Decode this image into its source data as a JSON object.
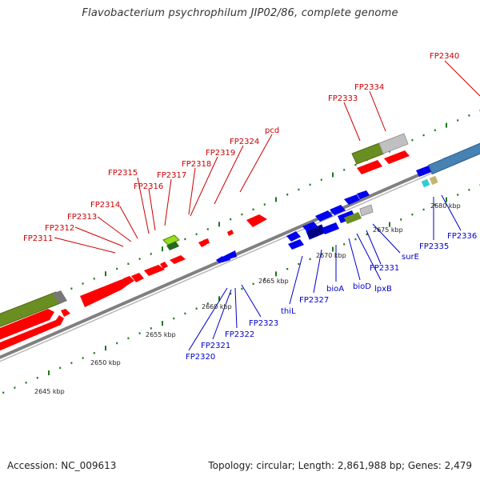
{
  "title": "Flavobacterium psychrophilum JIP02/86, complete genome",
  "footer": {
    "accession": "Accession: NC_009613",
    "summary": "Topology: circular; Length: 2,861,988 bp; Genes: 2,479"
  },
  "colors": {
    "forward_gene": "#ff0000",
    "reverse_gene": "#0000ee",
    "label_forward": "#cc0000",
    "label_reverse": "#0000cc",
    "backbone": "#808080",
    "tick": "#1a7a1a",
    "olive_feature": "#6b8e23",
    "grey_feature": "#c0c0c0",
    "steelblue_feature": "#4682b4",
    "lime_feature": "#99dd22"
  },
  "forward_labels": [
    "FP2311",
    "FP2312",
    "FP2313",
    "FP2314",
    "FP2315",
    "FP2316",
    "FP2317",
    "FP2318",
    "FP2319",
    "FP2324",
    "pcd",
    "FP2333",
    "FP2334",
    "FP2340"
  ],
  "reverse_labels": [
    "FP2320",
    "FP2321",
    "FP2322",
    "FP2323",
    "thiL",
    "FP2327",
    "bioA",
    "bioD",
    "lpxB",
    "FP2331",
    "surE",
    "FP2335",
    "FP2336"
  ],
  "scale_labels": [
    "2645 kbp",
    "2650 kbp",
    "2655 kbp",
    "2660 kbp",
    "2665 kbp",
    "2670 kbp",
    "2675 kbp",
    "2680 kbp"
  ]
}
